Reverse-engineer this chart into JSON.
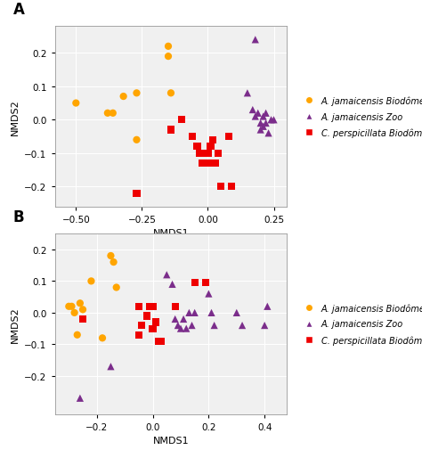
{
  "panel_A": {
    "orange_circles": [
      [
        -0.5,
        0.05
      ],
      [
        -0.38,
        0.02
      ],
      [
        -0.36,
        0.02
      ],
      [
        -0.32,
        0.07
      ],
      [
        -0.27,
        0.08
      ],
      [
        -0.27,
        -0.06
      ],
      [
        -0.15,
        0.22
      ],
      [
        -0.15,
        0.19
      ],
      [
        -0.14,
        0.08
      ]
    ],
    "purple_triangles": [
      [
        0.18,
        0.24
      ],
      [
        0.15,
        0.08
      ],
      [
        0.17,
        0.03
      ],
      [
        0.18,
        0.01
      ],
      [
        0.19,
        0.02
      ],
      [
        0.2,
        -0.01
      ],
      [
        0.2,
        -0.03
      ],
      [
        0.21,
        0.01
      ],
      [
        0.21,
        -0.02
      ],
      [
        0.22,
        0.02
      ],
      [
        0.22,
        -0.01
      ],
      [
        0.23,
        -0.04
      ],
      [
        0.24,
        0.0
      ],
      [
        0.25,
        0.0
      ]
    ],
    "red_squares": [
      [
        -0.14,
        -0.03
      ],
      [
        -0.1,
        0.0
      ],
      [
        -0.06,
        -0.05
      ],
      [
        -0.04,
        -0.08
      ],
      [
        -0.03,
        -0.1
      ],
      [
        -0.02,
        -0.13
      ],
      [
        0.0,
        -0.1
      ],
      [
        0.01,
        -0.08
      ],
      [
        0.01,
        -0.13
      ],
      [
        0.02,
        -0.06
      ],
      [
        0.03,
        -0.13
      ],
      [
        0.04,
        -0.1
      ],
      [
        0.05,
        -0.2
      ],
      [
        0.08,
        -0.05
      ],
      [
        0.09,
        -0.2
      ],
      [
        -0.27,
        -0.22
      ]
    ],
    "xlim": [
      -0.58,
      0.3
    ],
    "ylim": [
      -0.26,
      0.28
    ],
    "xticks": [
      -0.5,
      -0.25,
      0.0,
      0.25
    ],
    "yticks": [
      -0.2,
      -0.1,
      0.0,
      0.1,
      0.2
    ],
    "xlabel": "NMDS1",
    "ylabel": "NMDS2"
  },
  "panel_B": {
    "orange_circles": [
      [
        -0.3,
        0.02
      ],
      [
        -0.29,
        0.02
      ],
      [
        -0.28,
        0.0
      ],
      [
        -0.27,
        -0.07
      ],
      [
        -0.26,
        0.03
      ],
      [
        -0.25,
        0.01
      ],
      [
        -0.22,
        0.1
      ],
      [
        -0.18,
        -0.08
      ],
      [
        -0.15,
        0.18
      ],
      [
        -0.14,
        0.16
      ],
      [
        -0.13,
        0.08
      ]
    ],
    "purple_triangles": [
      [
        -0.26,
        -0.27
      ],
      [
        -0.15,
        -0.17
      ],
      [
        0.05,
        0.12
      ],
      [
        0.07,
        0.09
      ],
      [
        0.08,
        -0.02
      ],
      [
        0.09,
        -0.04
      ],
      [
        0.1,
        -0.05
      ],
      [
        0.11,
        -0.02
      ],
      [
        0.12,
        -0.05
      ],
      [
        0.13,
        0.0
      ],
      [
        0.14,
        -0.04
      ],
      [
        0.15,
        0.0
      ],
      [
        0.2,
        0.06
      ],
      [
        0.21,
        0.0
      ],
      [
        0.22,
        -0.04
      ],
      [
        0.3,
        0.0
      ],
      [
        0.32,
        -0.04
      ],
      [
        0.4,
        -0.04
      ],
      [
        0.41,
        0.02
      ]
    ],
    "red_squares": [
      [
        -0.25,
        -0.02
      ],
      [
        -0.05,
        0.02
      ],
      [
        -0.05,
        -0.07
      ],
      [
        -0.04,
        -0.04
      ],
      [
        -0.02,
        -0.01
      ],
      [
        -0.01,
        0.02
      ],
      [
        0.0,
        -0.05
      ],
      [
        0.0,
        0.02
      ],
      [
        0.01,
        -0.03
      ],
      [
        0.02,
        -0.09
      ],
      [
        0.03,
        -0.09
      ],
      [
        0.08,
        0.02
      ],
      [
        0.15,
        0.095
      ],
      [
        0.19,
        0.095
      ]
    ],
    "xlim": [
      -0.35,
      0.48
    ],
    "ylim": [
      -0.32,
      0.25
    ],
    "xticks": [
      -0.2,
      0.0,
      0.2,
      0.4
    ],
    "yticks": [
      -0.2,
      -0.1,
      0.0,
      0.1,
      0.2
    ],
    "xlabel": "NMDS1",
    "ylabel": "NMDS2"
  },
  "colors": {
    "orange": "#FFA500",
    "purple": "#7B2D8B",
    "red": "#EE0000",
    "background": "#F0F0F0"
  },
  "legend": {
    "italic_parts": [
      "A. jamaicensis",
      "A. jamaicensis",
      "C. perspicillata"
    ],
    "normal_parts": [
      " Biodôme",
      " Zoo",
      " Biodôme"
    ]
  },
  "marker_size": 35,
  "panel_labels": [
    "A",
    "B"
  ]
}
